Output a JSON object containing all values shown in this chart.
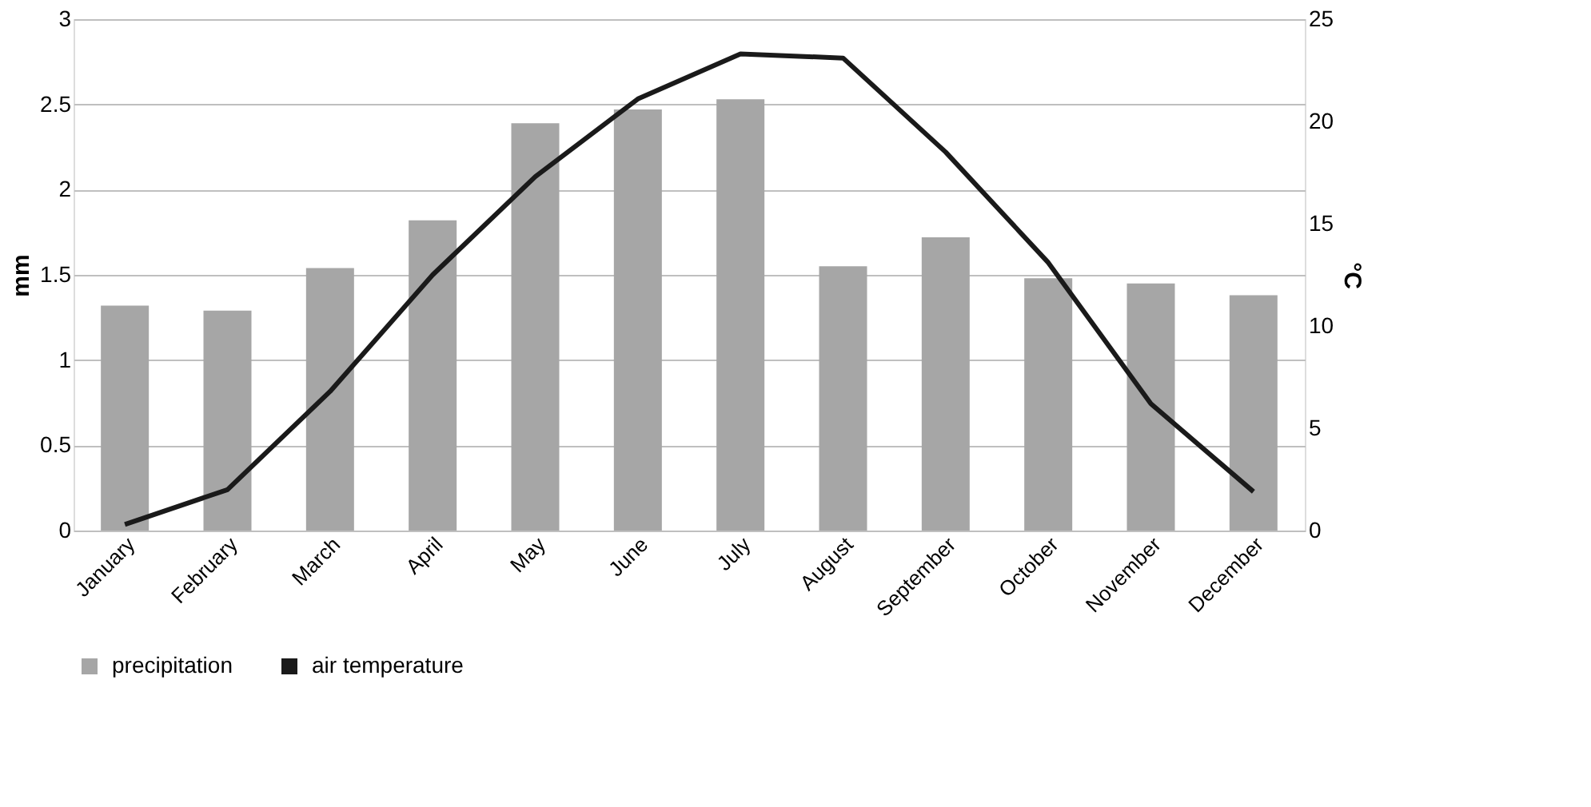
{
  "chart_data": {
    "type": "bar",
    "categories": [
      "January",
      "February",
      "March",
      "April",
      "May",
      "June",
      "July",
      "August",
      "September",
      "October",
      "November",
      "December"
    ],
    "ylabel": "mm",
    "y2label": "°C",
    "ylim": [
      0,
      3
    ],
    "yticks": [
      0,
      0.5,
      1,
      1.5,
      2,
      2.5,
      3
    ],
    "y2lim": [
      0,
      25
    ],
    "y2ticks": [
      0,
      5,
      10,
      15,
      20,
      25
    ],
    "grid": "y",
    "legend": "bottom",
    "series": [
      {
        "name": "precipitation",
        "color": "#a6a6a6",
        "values": [
          1.32,
          1.29,
          1.54,
          1.82,
          2.39,
          2.47,
          2.53,
          1.55,
          1.72,
          1.48,
          1.45,
          1.38
        ]
      },
      {
        "name": "air temperature",
        "type": "line",
        "axis": "y2",
        "color": "#1a1a1a",
        "values": [
          0.3,
          2.0,
          6.8,
          12.5,
          17.3,
          21.1,
          23.3,
          23.1,
          18.5,
          13.1,
          6.2,
          1.9
        ]
      }
    ]
  }
}
